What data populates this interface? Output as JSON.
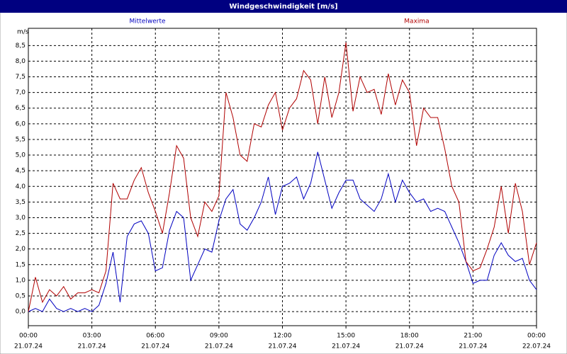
{
  "chart_data": {
    "type": "line",
    "title": "Windgeschwindigkeit [m/s]",
    "y_label": "m/s",
    "x": [
      0,
      20,
      40,
      60,
      80,
      100,
      120,
      140,
      160,
      180,
      200,
      220,
      240,
      260,
      280,
      300,
      320,
      340,
      360,
      380,
      400,
      420,
      440,
      460,
      480,
      500,
      520,
      540,
      560,
      580,
      600,
      620,
      640,
      660,
      680,
      700,
      720,
      740,
      760,
      780,
      800,
      820,
      840,
      860,
      880,
      900,
      920,
      940,
      960,
      980,
      1000,
      1020,
      1040,
      1060,
      1080,
      1100,
      1120,
      1140,
      1160,
      1180,
      1200,
      1220,
      1240,
      1260,
      1280,
      1300,
      1320,
      1340,
      1360,
      1380,
      1400,
      1420,
      1440
    ],
    "series": [
      {
        "name": "Mittelwerte",
        "color": "#0000c0",
        "values": [
          0.0,
          0.1,
          0.0,
          0.4,
          0.1,
          0.0,
          0.1,
          0.0,
          0.1,
          0.0,
          0.2,
          0.9,
          1.9,
          0.3,
          2.4,
          2.8,
          2.9,
          2.5,
          1.3,
          1.4,
          2.6,
          3.2,
          3.0,
          1.0,
          1.5,
          2.0,
          1.9,
          2.9,
          3.6,
          3.9,
          2.8,
          2.6,
          3.0,
          3.5,
          4.3,
          3.1,
          4.0,
          4.1,
          4.3,
          3.6,
          4.1,
          5.1,
          4.2,
          3.3,
          3.8,
          4.2,
          4.2,
          3.6,
          3.4,
          3.2,
          3.6,
          4.4,
          3.5,
          4.2,
          3.8,
          3.5,
          3.6,
          3.2,
          3.3,
          3.2,
          2.7,
          2.2,
          1.6,
          0.9,
          1.0,
          1.0,
          1.8,
          2.2,
          1.8,
          1.6,
          1.7,
          1.0,
          0.7
        ]
      },
      {
        "name": "Maxima",
        "color": "#b00000",
        "values": [
          0.0,
          1.1,
          0.3,
          0.7,
          0.5,
          0.8,
          0.4,
          0.6,
          0.6,
          0.7,
          0.6,
          1.3,
          4.1,
          3.6,
          3.6,
          4.2,
          4.6,
          3.8,
          3.2,
          2.5,
          3.8,
          5.3,
          4.9,
          3.0,
          2.4,
          3.5,
          3.2,
          3.7,
          7.0,
          6.2,
          5.0,
          4.8,
          6.0,
          5.9,
          6.6,
          7.0,
          5.8,
          6.5,
          6.8,
          7.7,
          7.4,
          6.0,
          7.5,
          6.2,
          7.0,
          8.6,
          6.4,
          7.5,
          7.0,
          7.1,
          6.3,
          7.6,
          6.6,
          7.4,
          7.0,
          5.3,
          6.5,
          6.2,
          6.2,
          5.2,
          4.0,
          3.5,
          1.6,
          1.3,
          1.4,
          2.0,
          2.7,
          4.0,
          2.5,
          4.1,
          3.2,
          1.5,
          2.2
        ]
      }
    ],
    "xlim": [
      0,
      1440
    ],
    "xticks": [
      {
        "value": 0,
        "label": "00:00"
      },
      {
        "value": 180,
        "label": "03:00"
      },
      {
        "value": 360,
        "label": "06:00"
      },
      {
        "value": 540,
        "label": "09:00"
      },
      {
        "value": 720,
        "label": "12:00"
      },
      {
        "value": 900,
        "label": "15:00"
      },
      {
        "value": 1080,
        "label": "18:00"
      },
      {
        "value": 1260,
        "label": "21:00"
      },
      {
        "value": 1440,
        "label": "00:00"
      }
    ],
    "xtick_dates": [
      "21.07.24",
      "21.07.24",
      "21.07.24",
      "21.07.24",
      "21.07.24",
      "21.07.24",
      "21.07.24",
      "21.07.24",
      "22.07.24"
    ],
    "ylim": [
      -0.45,
      9.05
    ],
    "yticks": [
      {
        "value": 0,
        "label": "0,0"
      },
      {
        "value": 0.5,
        "label": "0,5"
      },
      {
        "value": 1,
        "label": "1,0"
      },
      {
        "value": 1.5,
        "label": "1,5"
      },
      {
        "value": 2,
        "label": "2,0"
      },
      {
        "value": 2.5,
        "label": "2,5"
      },
      {
        "value": 3,
        "label": "3,0"
      },
      {
        "value": 3.5,
        "label": "3,5"
      },
      {
        "value": 4,
        "label": "4,0"
      },
      {
        "value": 4.5,
        "label": "4,5"
      },
      {
        "value": 5,
        "label": "5,0"
      },
      {
        "value": 5.5,
        "label": "5,5"
      },
      {
        "value": 6,
        "label": "6,0"
      },
      {
        "value": 6.5,
        "label": "6,5"
      },
      {
        "value": 7,
        "label": "7,0"
      },
      {
        "value": 7.5,
        "label": "7,5"
      },
      {
        "value": 8,
        "label": "8,0"
      },
      {
        "value": 8.5,
        "label": "8,5"
      }
    ],
    "grid": true
  }
}
